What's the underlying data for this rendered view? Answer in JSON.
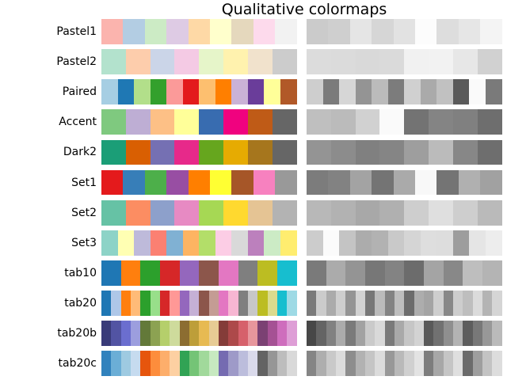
{
  "title": "Qualitative colormaps",
  "chart_data": {
    "type": "colormap-swatches",
    "title": "Qualitative colormaps",
    "layout": {
      "left_column": "discrete color swatch bar per colormap",
      "right_column": "grayscale equivalent (CIELab lightness L*) per colormap",
      "labels": "colormap names, right-aligned left of bars",
      "grid": "off",
      "axes": "off"
    },
    "rows": [
      {
        "name": "Pastel1",
        "colors": [
          "#fbb4ae",
          "#b3cde3",
          "#ccebc5",
          "#decbe4",
          "#fed9a6",
          "#ffffcc",
          "#e5d8bd",
          "#fddaec",
          "#f2f2f2"
        ]
      },
      {
        "name": "Pastel2",
        "colors": [
          "#b3e2cd",
          "#fdcdac",
          "#cbd5e8",
          "#f4cae4",
          "#e6f5c9",
          "#fff2ae",
          "#f1e2cc",
          "#cccccc"
        ]
      },
      {
        "name": "Paired",
        "colors": [
          "#a6cee3",
          "#1f78b4",
          "#b2df8a",
          "#33a02c",
          "#fb9a99",
          "#e31a1c",
          "#fdbf6f",
          "#ff7f00",
          "#cab2d6",
          "#6a3d9a",
          "#ffff99",
          "#b15928"
        ]
      },
      {
        "name": "Accent",
        "colors": [
          "#7fc97f",
          "#beaed4",
          "#fdc086",
          "#ffff99",
          "#386cb0",
          "#f0027f",
          "#bf5b17",
          "#666666"
        ]
      },
      {
        "name": "Dark2",
        "colors": [
          "#1b9e77",
          "#d95f02",
          "#7570b3",
          "#e7298a",
          "#66a61e",
          "#e6ab02",
          "#a6761d",
          "#666666"
        ]
      },
      {
        "name": "Set1",
        "colors": [
          "#e41a1c",
          "#377eb8",
          "#4daf4a",
          "#984ea3",
          "#ff7f00",
          "#ffff33",
          "#a65628",
          "#f781bf",
          "#999999"
        ]
      },
      {
        "name": "Set2",
        "colors": [
          "#66c2a5",
          "#fc8d62",
          "#8da0cb",
          "#e78ac3",
          "#a6d854",
          "#ffd92f",
          "#e5c494",
          "#b3b3b3"
        ]
      },
      {
        "name": "Set3",
        "colors": [
          "#8dd3c7",
          "#ffffb3",
          "#bebada",
          "#fb8072",
          "#80b1d3",
          "#fdb462",
          "#b3de69",
          "#fccde5",
          "#d9d9d9",
          "#bc80bd",
          "#ccebc5",
          "#ffed6f"
        ]
      },
      {
        "name": "tab10",
        "colors": [
          "#1f77b4",
          "#ff7f0e",
          "#2ca02c",
          "#d62728",
          "#9467bd",
          "#8c564b",
          "#e377c2",
          "#7f7f7f",
          "#bcbd22",
          "#17becf"
        ]
      },
      {
        "name": "tab20",
        "colors": [
          "#1f77b4",
          "#aec7e8",
          "#ff7f0e",
          "#ffbb78",
          "#2ca02c",
          "#98df8a",
          "#d62728",
          "#ff9896",
          "#9467bd",
          "#c5b0d5",
          "#8c564b",
          "#c49c94",
          "#e377c2",
          "#f7b6d2",
          "#7f7f7f",
          "#c7c7c7",
          "#bcbd22",
          "#dbdb8d",
          "#17becf",
          "#9edae5"
        ]
      },
      {
        "name": "tab20b",
        "colors": [
          "#393b79",
          "#5254a3",
          "#6b6ecf",
          "#9c9ede",
          "#637939",
          "#8ca252",
          "#b5cf6b",
          "#cedb9c",
          "#8c6d31",
          "#bd9e39",
          "#e7ba52",
          "#e7cb94",
          "#843c39",
          "#ad494a",
          "#d6616b",
          "#e7969c",
          "#7b4173",
          "#a55194",
          "#ce6dbd",
          "#de9ed6"
        ]
      },
      {
        "name": "tab20c",
        "colors": [
          "#3182bd",
          "#6baed6",
          "#9ecae1",
          "#c6dbef",
          "#e6550d",
          "#fd8d3c",
          "#fdae6b",
          "#fdd0a2",
          "#31a354",
          "#74c476",
          "#a1d99b",
          "#c7e9c0",
          "#756bb1",
          "#9e9ac8",
          "#bcbddc",
          "#dadaeb",
          "#636363",
          "#969696",
          "#bdbdbd",
          "#d9d9d9"
        ]
      }
    ]
  }
}
